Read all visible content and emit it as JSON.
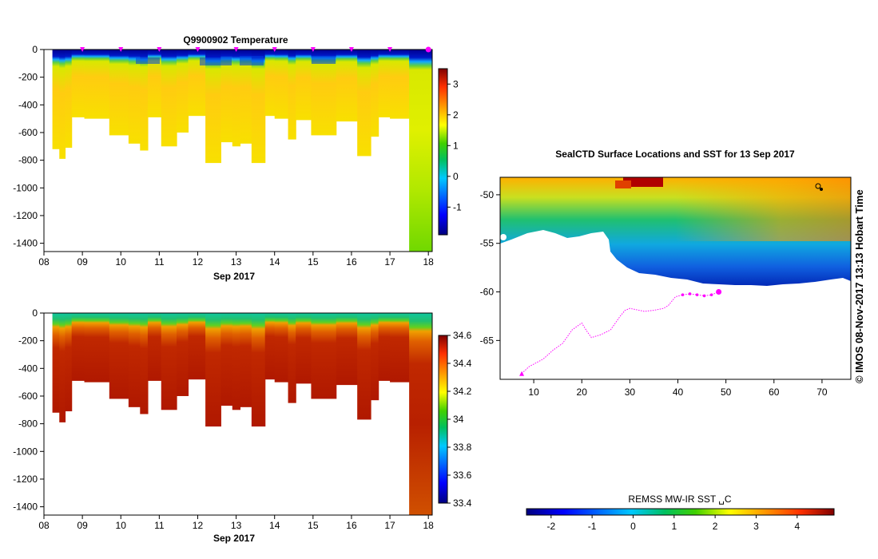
{
  "chart_data": [
    {
      "type": "heatmap",
      "title": "Q9900902  Temperature",
      "xlabel": "Sep 2017",
      "ylabel": "",
      "x_tick_labels": [
        "08",
        "09",
        "10",
        "11",
        "12",
        "13",
        "14",
        "15",
        "16",
        "17",
        "18"
      ],
      "x_range_days": [
        8,
        18.1
      ],
      "y_tick_labels": [
        "0",
        "-200",
        "-400",
        "-600",
        "-800",
        "-1000",
        "-1200",
        "-1400"
      ],
      "ylim": [
        -1460,
        0
      ],
      "colorbar_ticks": [
        "3",
        "2",
        "1",
        "0",
        "-1"
      ],
      "colorbar_range": [
        -1.9,
        3.5
      ],
      "profile_days": [
        9,
        10,
        11,
        12,
        13,
        14,
        15,
        16,
        17,
        18
      ],
      "profiles": [
        {
          "start": 8.22,
          "end": 8.4,
          "bottom": -720
        },
        {
          "start": 8.4,
          "end": 8.55,
          "bottom": -790
        },
        {
          "start": 8.55,
          "end": 8.72,
          "bottom": -710
        },
        {
          "start": 8.72,
          "end": 9.05,
          "bottom": -490
        },
        {
          "start": 9.05,
          "end": 9.7,
          "bottom": -500
        },
        {
          "start": 9.7,
          "end": 10.2,
          "bottom": -620
        },
        {
          "start": 10.2,
          "end": 10.5,
          "bottom": -680
        },
        {
          "start": 10.5,
          "end": 10.7,
          "bottom": -730
        },
        {
          "start": 10.7,
          "end": 11.05,
          "bottom": -490
        },
        {
          "start": 11.05,
          "end": 11.45,
          "bottom": -700
        },
        {
          "start": 11.45,
          "end": 11.75,
          "bottom": -600
        },
        {
          "start": 11.75,
          "end": 12.2,
          "bottom": -480
        },
        {
          "start": 12.2,
          "end": 12.6,
          "bottom": -820
        },
        {
          "start": 12.6,
          "end": 12.9,
          "bottom": -670
        },
        {
          "start": 12.9,
          "end": 13.1,
          "bottom": -700
        },
        {
          "start": 13.1,
          "end": 13.4,
          "bottom": -680
        },
        {
          "start": 13.4,
          "end": 13.75,
          "bottom": -820
        },
        {
          "start": 13.75,
          "end": 14.0,
          "bottom": -480
        },
        {
          "start": 14.0,
          "end": 14.35,
          "bottom": -500
        },
        {
          "start": 14.35,
          "end": 14.55,
          "bottom": -650
        },
        {
          "start": 14.55,
          "end": 14.95,
          "bottom": -510
        },
        {
          "start": 14.95,
          "end": 15.6,
          "bottom": -620
        },
        {
          "start": 15.6,
          "end": 16.15,
          "bottom": -520
        },
        {
          "start": 16.15,
          "end": 16.5,
          "bottom": -770
        },
        {
          "start": 16.5,
          "end": 16.7,
          "bottom": -630
        },
        {
          "start": 16.7,
          "end": 17.0,
          "bottom": -490
        },
        {
          "start": 17.0,
          "end": 17.5,
          "bottom": -500
        },
        {
          "start": 17.5,
          "end": 18.1,
          "bottom": -1460
        }
      ]
    },
    {
      "type": "heatmap",
      "title": "",
      "xlabel": "Sep 2017",
      "ylabel": "",
      "x_tick_labels": [
        "08",
        "09",
        "10",
        "11",
        "12",
        "13",
        "14",
        "15",
        "16",
        "17",
        "18"
      ],
      "x_range_days": [
        8,
        18.1
      ],
      "y_tick_labels": [
        "0",
        "-200",
        "-400",
        "-600",
        "-800",
        "-1000",
        "-1200",
        "-1400"
      ],
      "ylim": [
        -1460,
        0
      ],
      "colorbar_ticks": [
        "34.6",
        "34.4",
        "34.2",
        "34",
        "33.8",
        "33.6",
        "33.4"
      ],
      "colorbar_range": [
        33.4,
        34.6
      ]
    },
    {
      "type": "scatter",
      "title": "SealCTD Surface Locations and SST for 13 Sep 2017",
      "xlabel": "",
      "ylabel": "",
      "x_tick_labels": [
        "10",
        "20",
        "30",
        "40",
        "50",
        "60",
        "70"
      ],
      "xlim": [
        3,
        76
      ],
      "y_tick_labels": [
        "-50",
        "-55",
        "-60",
        "-65"
      ],
      "ylim": [
        -69,
        -48.2
      ],
      "colorbar_label": "REMSS MW-IR SST ␣C",
      "colorbar_ticks": [
        "-2",
        "-1",
        "0",
        "1",
        "2",
        "3",
        "4"
      ],
      "colorbar_range": [
        -2.6,
        4.9
      ],
      "track_lon": [
        7.5,
        9,
        12,
        14,
        16,
        17,
        18,
        20,
        21,
        22,
        24,
        26,
        27,
        28,
        29,
        30,
        31,
        33,
        35,
        37,
        38,
        39.5,
        41,
        42.5,
        44,
        45.5,
        47,
        48.5
      ],
      "track_lat": [
        -68.4,
        -67.7,
        -66.9,
        -66,
        -65.3,
        -64.6,
        -63.9,
        -63.2,
        -64,
        -64.7,
        -64.4,
        -63.9,
        -63.2,
        -62.5,
        -61.9,
        -61.7,
        -61.8,
        -62,
        -61.9,
        -61.7,
        -61.4,
        -60.5,
        -60.3,
        -60.2,
        -60.3,
        -60.4,
        -60.3,
        -60
      ],
      "current_position": {
        "lon": 48.5,
        "lat": -60
      },
      "start_position": {
        "lon": 7.5,
        "lat": -68.4
      }
    }
  ],
  "credit": "© IMOS 08-Nov-2017 13:13 Hobart Time",
  "colors": {
    "marker": "#ff00ff",
    "land": "#ffffff"
  }
}
